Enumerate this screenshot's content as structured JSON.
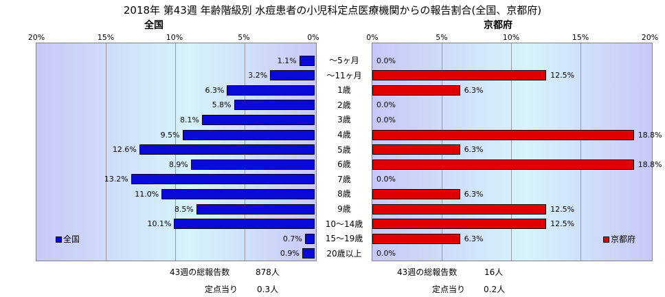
{
  "title": "2018年 第43週 年齢階級別 水痘患者の小児科定点医療機関からの報告割合(全国、京都府)",
  "colors": {
    "left_bar": "#0a0ad8",
    "right_bar": "#e00000"
  },
  "chart_data": [
    {
      "type": "bar",
      "orientation": "horizontal",
      "direction": "right-to-left",
      "title": "全国",
      "legend": "全国",
      "legend_position": "bottom-left",
      "xlim": [
        0,
        20
      ],
      "ticks": [
        "20%",
        "15%",
        "10%",
        "5%",
        "0%"
      ],
      "categories": [
        "～5ヶ月",
        "～11ヶ月",
        "1歳",
        "2歳",
        "3歳",
        "4歳",
        "5歳",
        "6歳",
        "7歳",
        "8歳",
        "9歳",
        "10～14歳",
        "15～19歳",
        "20歳以上"
      ],
      "values": [
        1.1,
        3.2,
        6.3,
        5.8,
        8.1,
        9.5,
        12.6,
        8.9,
        13.2,
        11.0,
        8.5,
        10.1,
        0.7,
        0.9
      ],
      "labels": [
        "1.1%",
        "3.2%",
        "6.3%",
        "5.8%",
        "8.1%",
        "9.5%",
        "12.6%",
        "8.9%",
        "13.2%",
        "11.0%",
        "8.5%",
        "10.1%",
        "0.7%",
        "0.9%"
      ]
    },
    {
      "type": "bar",
      "orientation": "horizontal",
      "title": "京都府",
      "legend": "京都府",
      "legend_position": "bottom-right",
      "xlim": [
        0,
        20
      ],
      "ticks": [
        "0%",
        "5%",
        "10%",
        "15%",
        "20%"
      ],
      "categories": [
        "～5ヶ月",
        "～11ヶ月",
        "1歳",
        "2歳",
        "3歳",
        "4歳",
        "5歳",
        "6歳",
        "7歳",
        "8歳",
        "9歳",
        "10～14歳",
        "15～19歳",
        "20歳以上"
      ],
      "values": [
        0.0,
        12.5,
        6.3,
        0.0,
        0.0,
        18.8,
        6.3,
        18.8,
        0.0,
        6.3,
        12.5,
        12.5,
        6.3,
        0.0
      ],
      "labels": [
        "0.0%",
        "12.5%",
        "6.3%",
        "0.0%",
        "0.0%",
        "18.8%",
        "6.3%",
        "18.8%",
        "0.0%",
        "6.3%",
        "12.5%",
        "12.5%",
        "6.3%",
        "0.0%"
      ]
    }
  ],
  "footer": {
    "left": {
      "reports_label": "43週の総報告数",
      "reports_value": "878人",
      "per_site_label": "定点当り",
      "per_site_value": "0.3人"
    },
    "right": {
      "reports_label": "43週の総報告数",
      "reports_value": "16人",
      "per_site_label": "定点当り",
      "per_site_value": "0.2人"
    }
  }
}
